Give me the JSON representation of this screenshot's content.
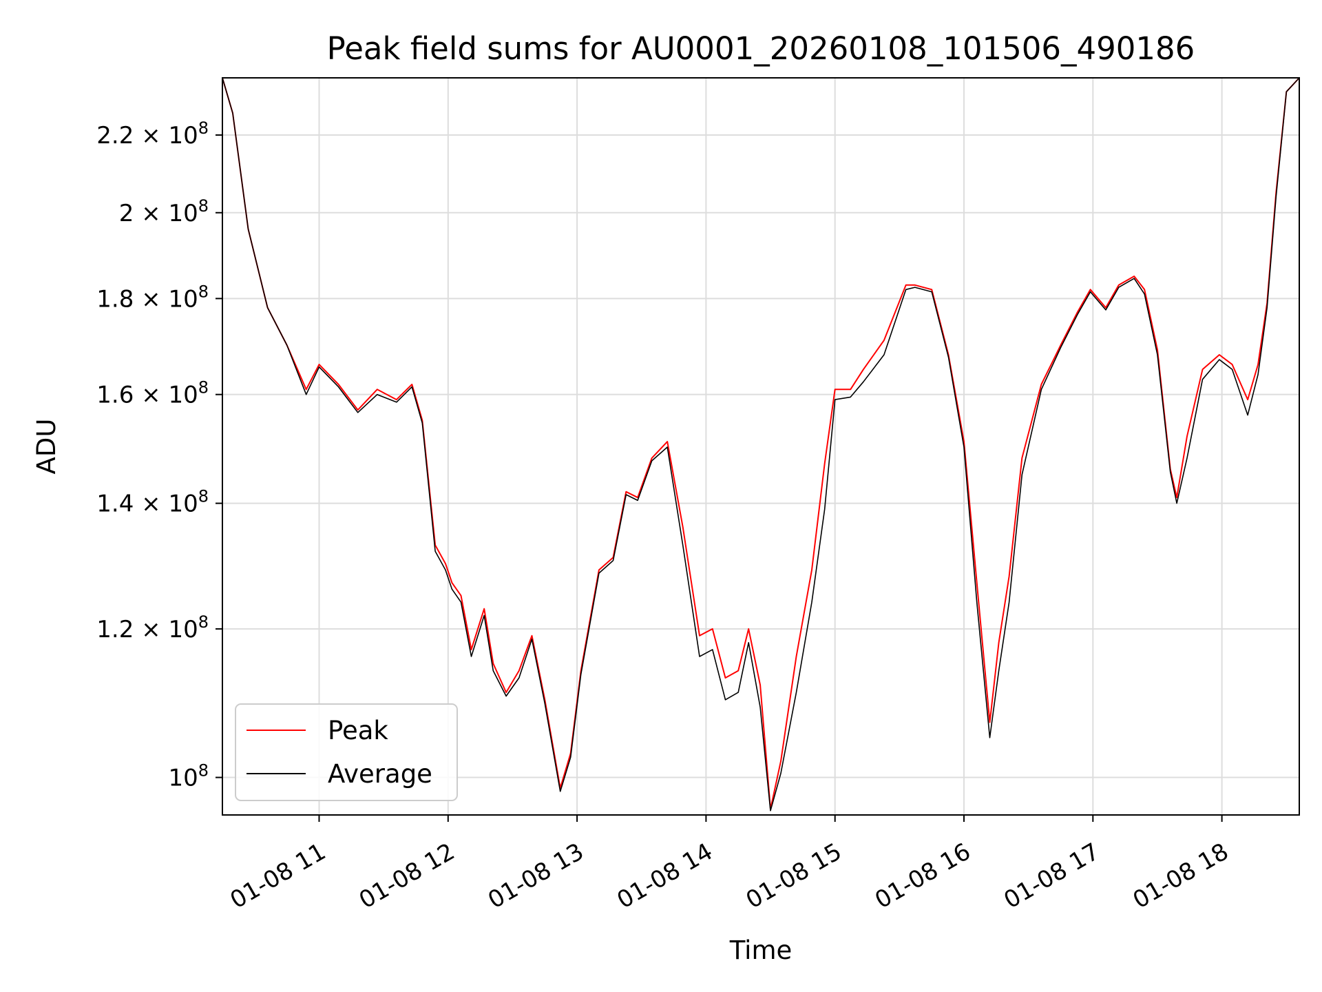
{
  "chart_data": {
    "type": "line",
    "title": "Peak field sums for AU0001_20260108_101506_490186",
    "xlabel": "Time",
    "ylabel": "ADU",
    "y_scale": "log",
    "x_ticks": [
      "01-08 11",
      "01-08 12",
      "01-08 13",
      "01-08 14",
      "01-08 15",
      "01-08 16",
      "01-08 17",
      "01-08 18"
    ],
    "x_tick_hours": [
      11,
      12,
      13,
      14,
      15,
      16,
      17,
      18
    ],
    "y_ticks": [
      {
        "value": 100000000,
        "mantissa": "",
        "exp": "8"
      },
      {
        "value": 120000000,
        "mantissa": "1.2",
        "exp": "8"
      },
      {
        "value": 140000000,
        "mantissa": "1.4",
        "exp": "8"
      },
      {
        "value": 160000000,
        "mantissa": "1.6",
        "exp": "8"
      },
      {
        "value": 180000000,
        "mantissa": "1.8",
        "exp": "8"
      },
      {
        "value": 200000000,
        "mantissa": "2",
        "exp": "8"
      },
      {
        "value": 220000000,
        "mantissa": "2.2",
        "exp": "8"
      }
    ],
    "xlim": [
      10.25,
      18.6
    ],
    "ylim": [
      95500000,
      236000000
    ],
    "grid": true,
    "legend_position": "lower-left",
    "series": [
      {
        "name": "Peak",
        "color": "#ff0000",
        "x": [
          10.25,
          10.33,
          10.45,
          10.6,
          10.75,
          10.9,
          11.0,
          11.15,
          11.3,
          11.45,
          11.6,
          11.72,
          11.8,
          11.9,
          11.98,
          12.03,
          12.1,
          12.18,
          12.28,
          12.35,
          12.45,
          12.55,
          12.65,
          12.75,
          12.87,
          12.95,
          13.03,
          13.17,
          13.28,
          13.38,
          13.47,
          13.58,
          13.7,
          13.82,
          13.95,
          14.05,
          14.15,
          14.25,
          14.33,
          14.42,
          14.5,
          14.58,
          14.7,
          14.82,
          14.92,
          15.0,
          15.12,
          15.22,
          15.38,
          15.55,
          15.62,
          15.75,
          15.88,
          16.0,
          16.1,
          16.2,
          16.27,
          16.35,
          16.45,
          16.6,
          16.75,
          16.88,
          16.98,
          17.1,
          17.2,
          17.32,
          17.4,
          17.5,
          17.6,
          17.65,
          17.73,
          17.85,
          17.98,
          18.08,
          18.2,
          18.28,
          18.35,
          18.42,
          18.5,
          18.6
        ],
        "y": [
          236000000,
          226000000,
          196000000,
          178000000,
          170000000,
          161000000,
          166000000,
          162000000,
          157000000,
          161000000,
          159000000,
          162000000,
          155000000,
          133000000,
          130000000,
          127000000,
          125000000,
          117000000,
          123000000,
          115000000,
          111000000,
          114000000,
          119000000,
          110000000,
          98700000,
          103000000,
          114000000,
          129000000,
          131000000,
          142000000,
          141000000,
          148000000,
          151000000,
          136000000,
          119000000,
          120000000,
          113000000,
          114000000,
          120000000,
          112000000,
          96200000,
          102000000,
          116000000,
          129000000,
          147000000,
          161000000,
          161000000,
          165000000,
          171000000,
          183000000,
          183000000,
          182000000,
          168000000,
          151000000,
          127000000,
          107000000,
          118000000,
          128000000,
          148000000,
          162000000,
          170000000,
          177000000,
          182000000,
          178000000,
          183000000,
          185000000,
          182000000,
          169000000,
          146000000,
          141000000,
          152000000,
          165000000,
          168000000,
          166000000,
          159000000,
          166000000,
          179000000,
          205000000,
          232000000,
          236000000
        ]
      },
      {
        "name": "Average",
        "color": "#000000",
        "x": [
          10.25,
          10.33,
          10.45,
          10.6,
          10.75,
          10.9,
          11.0,
          11.15,
          11.3,
          11.45,
          11.6,
          11.72,
          11.8,
          11.9,
          11.98,
          12.03,
          12.1,
          12.18,
          12.28,
          12.35,
          12.45,
          12.55,
          12.65,
          12.75,
          12.87,
          12.95,
          13.03,
          13.17,
          13.28,
          13.38,
          13.47,
          13.58,
          13.7,
          13.82,
          13.95,
          14.05,
          14.15,
          14.25,
          14.33,
          14.42,
          14.5,
          14.58,
          14.7,
          14.82,
          14.92,
          15.0,
          15.12,
          15.22,
          15.38,
          15.55,
          15.62,
          15.75,
          15.88,
          16.0,
          16.1,
          16.2,
          16.27,
          16.35,
          16.45,
          16.6,
          16.75,
          16.88,
          16.98,
          17.1,
          17.2,
          17.32,
          17.4,
          17.5,
          17.6,
          17.65,
          17.73,
          17.85,
          17.98,
          18.08,
          18.2,
          18.28,
          18.35,
          18.42,
          18.5,
          18.6
        ],
        "y": [
          236000000,
          226000000,
          196000000,
          178000000,
          170000000,
          160000000,
          165500000,
          161500000,
          156500000,
          160000000,
          158500000,
          161500000,
          154500000,
          132000000,
          129000000,
          126000000,
          124000000,
          116000000,
          122000000,
          114000000,
          110500000,
          113000000,
          118500000,
          109500000,
          98300000,
          102500000,
          113500000,
          128500000,
          130500000,
          141500000,
          140500000,
          147500000,
          150000000,
          133000000,
          116000000,
          117000000,
          110000000,
          111000000,
          118000000,
          109000000,
          96000000,
          100500000,
          111000000,
          124000000,
          139000000,
          159000000,
          159500000,
          162500000,
          168000000,
          182000000,
          182500000,
          181500000,
          167500000,
          150000000,
          124000000,
          105000000,
          114000000,
          124000000,
          145000000,
          161000000,
          169500000,
          176500000,
          181500000,
          177500000,
          182500000,
          184500000,
          181000000,
          168000000,
          145500000,
          140000000,
          148000000,
          163000000,
          167000000,
          165000000,
          156000000,
          164000000,
          178000000,
          204000000,
          232000000,
          236000000
        ]
      }
    ]
  }
}
